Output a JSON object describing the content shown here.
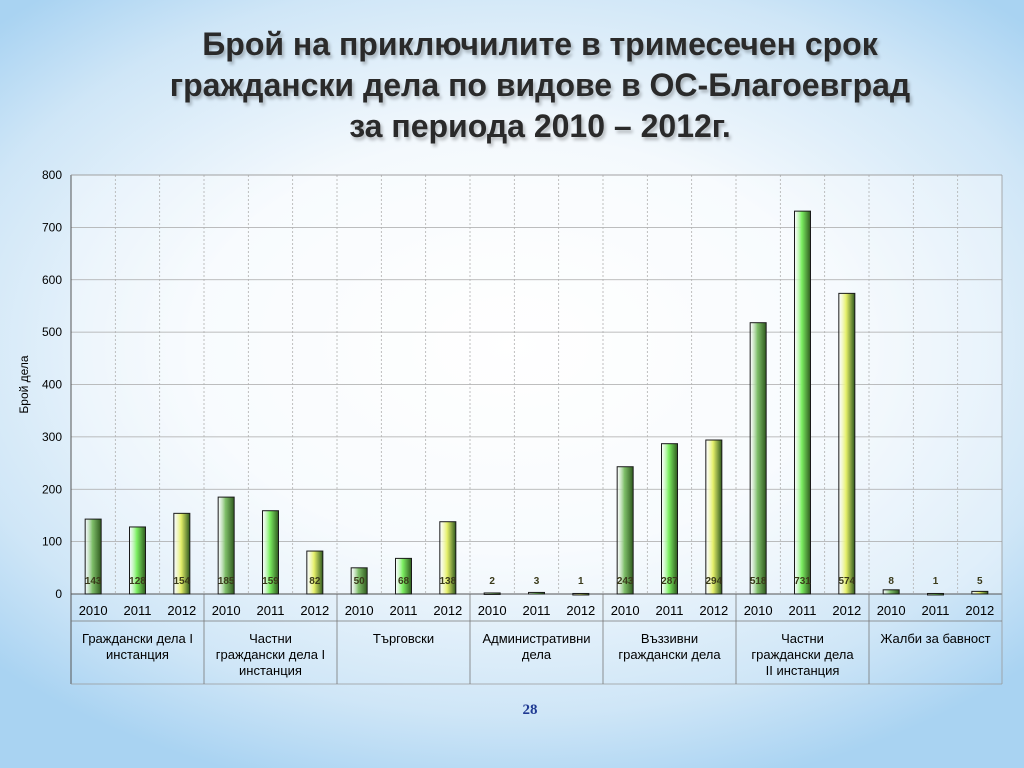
{
  "slide": {
    "title_lines": [
      "Брой на приключилите в тримесечен срок",
      "граждански дела по видове в ОС-Благоевград",
      "за периода 2010 – 2012г."
    ],
    "page_number": "28"
  },
  "chart_data": {
    "type": "bar",
    "title": "",
    "ylabel": "Брой дела",
    "xlabel": "",
    "ylim": [
      0,
      800
    ],
    "yticks": [
      0,
      100,
      200,
      300,
      400,
      500,
      600,
      700,
      800
    ],
    "grid": true,
    "groups": [
      {
        "label": "Граждански дела I инстанция",
        "label_lines": [
          "Граждански дела I",
          "инстанция"
        ],
        "years": [
          "2010",
          "2011",
          "2012"
        ],
        "values": [
          143,
          128,
          154
        ]
      },
      {
        "label": "Частни граждански дела I инстанция",
        "label_lines": [
          "Частни",
          "граждански дела I",
          "инстанция"
        ],
        "years": [
          "2010",
          "2011",
          "2012"
        ],
        "values": [
          185,
          159,
          82
        ]
      },
      {
        "label": "Търговски",
        "label_lines": [
          "Търговски"
        ],
        "years": [
          "2010",
          "2011",
          "2012"
        ],
        "values": [
          50,
          68,
          138
        ]
      },
      {
        "label": "Административни дела",
        "label_lines": [
          "Административни",
          "дела"
        ],
        "years": [
          "2010",
          "2011",
          "2012"
        ],
        "values": [
          2,
          3,
          1
        ]
      },
      {
        "label": "Въззивни граждански дела",
        "label_lines": [
          "Въззивни",
          "граждански дела"
        ],
        "years": [
          "2010",
          "2011",
          "2012"
        ],
        "values": [
          243,
          287,
          294
        ]
      },
      {
        "label": "Частни граждански дела II инстанция",
        "label_lines": [
          "Частни",
          "граждански дела",
          "II инстанция"
        ],
        "years": [
          "2010",
          "2011",
          "2012"
        ],
        "values": [
          518,
          731,
          574
        ]
      },
      {
        "label": "Жалби за бавност",
        "label_lines": [
          "Жалби за бавност"
        ],
        "years": [
          "2010",
          "2011",
          "2012"
        ],
        "values": [
          8,
          1,
          5
        ]
      }
    ],
    "year_colors": {
      "2010": "#7fbf6a",
      "2011": "#7cf062",
      "2012": "#e6f06a"
    }
  }
}
